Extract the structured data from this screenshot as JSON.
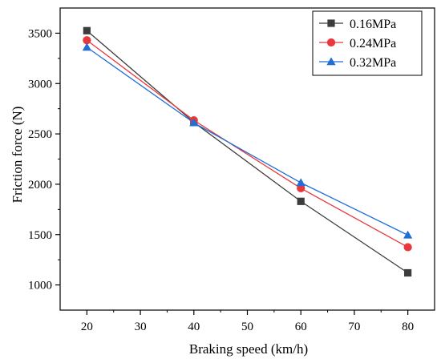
{
  "chart_data": {
    "type": "line",
    "title": "",
    "xlabel": "Braking speed (km/h)",
    "ylabel": "Friction force (N)",
    "xlim": [
      15,
      85
    ],
    "ylim": [
      750,
      3750
    ],
    "xticks": [
      20,
      30,
      40,
      50,
      60,
      70,
      80
    ],
    "yticks": [
      1000,
      1500,
      2000,
      2500,
      3000,
      3500
    ],
    "x": [
      20,
      40,
      60,
      80
    ],
    "grid": false,
    "legend_position": "top-right",
    "series": [
      {
        "name": "0.16MPa",
        "values": [
          3525,
          2615,
          1830,
          1120
        ],
        "color": "#3c3c3c",
        "marker": "square"
      },
      {
        "name": "0.24MPa",
        "values": [
          3430,
          2635,
          1960,
          1375
        ],
        "color": "#e8383d",
        "marker": "circle"
      },
      {
        "name": "0.32MPa",
        "values": [
          3360,
          2610,
          2015,
          1495
        ],
        "color": "#1f6fd6",
        "marker": "triangle"
      }
    ]
  }
}
